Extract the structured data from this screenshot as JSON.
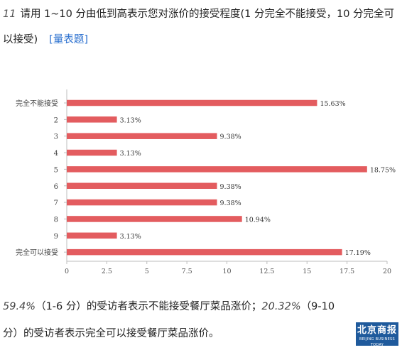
{
  "question": {
    "number": "11",
    "text": "请用 1~10 分由低到高表示您对涨价的接受程度(1 分完全不能接受，10 分完全可以接受)",
    "type_link": "[量表题]"
  },
  "chart_data": {
    "type": "bar",
    "orientation": "horizontal",
    "categories": [
      "完全不能接受",
      "2",
      "3",
      "4",
      "5",
      "6",
      "7",
      "8",
      "9",
      "完全可以接受"
    ],
    "values": [
      15.63,
      3.13,
      9.38,
      3.13,
      18.75,
      9.38,
      9.38,
      10.94,
      3.13,
      17.19
    ],
    "value_labels": [
      "15.63%",
      "3.13%",
      "9.38%",
      "3.13%",
      "18.75%",
      "9.38%",
      "9.38%",
      "10.94%",
      "3.13%",
      "17.19%"
    ],
    "xlim": [
      0,
      20
    ],
    "xticks": [
      0,
      2.5,
      5,
      7.5,
      10,
      12.5,
      15,
      17.5,
      20
    ],
    "xtick_labels": [
      "0",
      "2.5",
      "5",
      "7.5",
      "10",
      "12.5",
      "15",
      "17.5",
      "20"
    ],
    "bar_color": "#e35c5f",
    "grid": false
  },
  "conclusion": {
    "pct_low": "59.4%",
    "range_low": "（1-6 分）",
    "text_low": "的受访者表示不能接受餐厅菜品涨价；",
    "pct_high": "20.32%",
    "range_high": "（9-10 分）",
    "text_high": "的受访者表示完全可以接受餐厅菜品涨价。"
  },
  "logo": {
    "zh": "北京商报",
    "en": "BEIJING BUSINESS TODAY"
  }
}
